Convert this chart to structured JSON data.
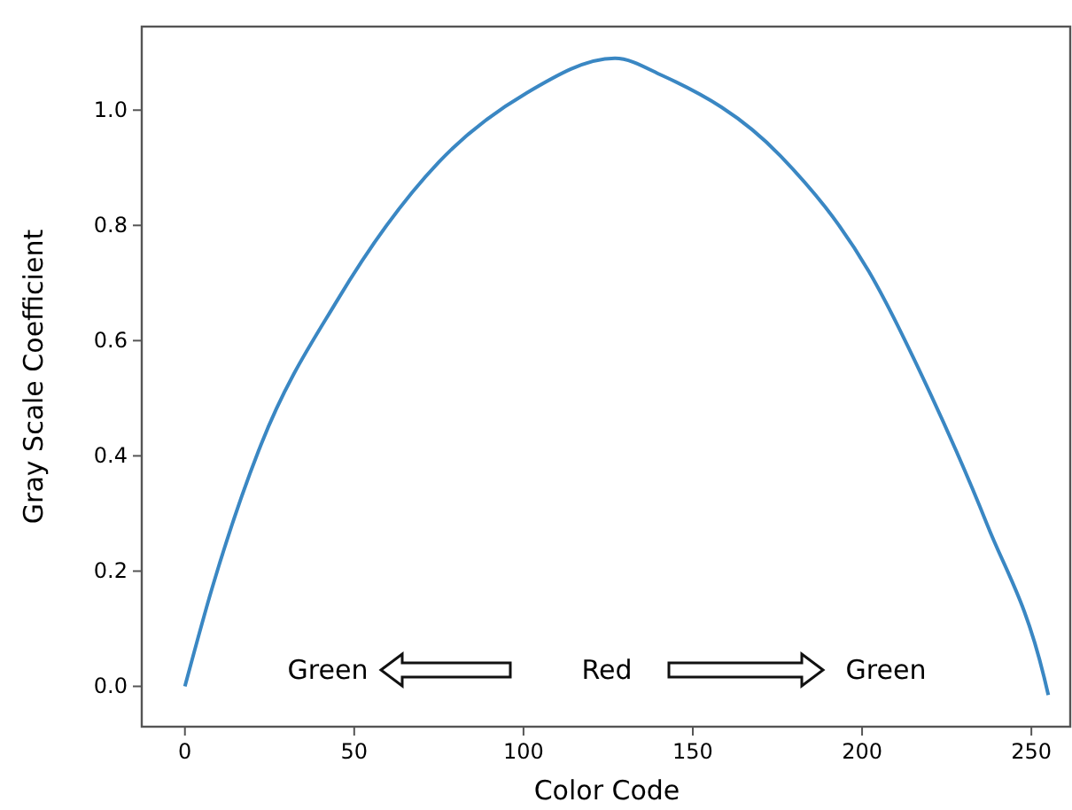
{
  "chart_data": {
    "type": "line",
    "xlabel": "Color Code",
    "ylabel": "Gray Scale Coefficient",
    "x": [
      0,
      8,
      22.5,
      45,
      75,
      101,
      127,
      141,
      176,
      202,
      220,
      237,
      254,
      255
    ],
    "series": [
      {
        "color": "#3a87c3",
        "values": [
          0,
          0.17,
          0.42,
          0.67,
          0.91,
          1.03,
          1.09,
          1.06,
          0.92,
          0.72,
          0.51,
          0.28,
          0.01,
          -0.015
        ]
      }
    ],
    "xlim": [
      -12.75,
      262
    ],
    "ylim": [
      -0.07,
      1.145
    ],
    "xticks": [
      0,
      50,
      100,
      150,
      200,
      250
    ],
    "yticks": [
      {
        "value": 0,
        "label": "0.0"
      },
      {
        "value": 0.2,
        "label": "0.2"
      },
      {
        "value": 0.4,
        "label": "0.4"
      },
      {
        "value": 0.6,
        "label": "0.6"
      },
      {
        "value": 0.8,
        "label": "0.8"
      },
      {
        "value": 1,
        "label": "1.0"
      }
    ],
    "grid": false,
    "marker": "none",
    "line_style": "solid",
    "annotations": [
      "Green",
      "Red",
      "Green"
    ]
  }
}
